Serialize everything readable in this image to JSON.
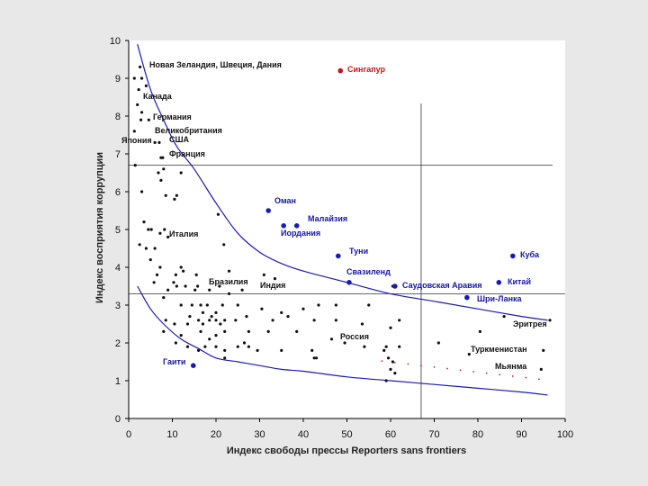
{
  "chart_data": {
    "type": "scatter",
    "title": "",
    "xlabel": "Индекс свободы прессы Reporters sans frontiers",
    "ylabel": "Индекс восприятия коррупции",
    "xlim": [
      0,
      100
    ],
    "ylim": [
      0,
      10
    ],
    "xticks": [
      "0",
      "10",
      "20",
      "30",
      "40",
      "50",
      "60",
      "70",
      "80",
      "90",
      "100"
    ],
    "yticks": [
      "0",
      "1",
      "2",
      "3",
      "4",
      "5",
      "6",
      "7",
      "8",
      "9",
      "10"
    ],
    "grid": false,
    "reference_lines": {
      "vertical_x": 67,
      "horizontal_y1": 6.7,
      "horizontal_y2": 3.3
    },
    "curves": [
      {
        "name": "upper-envelope",
        "x": [
          2,
          5,
          8,
          11,
          15,
          20,
          25,
          30,
          35,
          40,
          50,
          60,
          70,
          80,
          90,
          96
        ],
        "y": [
          9.9,
          8.7,
          7.9,
          7.2,
          6.6,
          5.7,
          4.9,
          4.4,
          4.1,
          3.9,
          3.6,
          3.3,
          3.1,
          2.9,
          2.7,
          2.6
        ]
      },
      {
        "name": "lower-envelope",
        "x": [
          2,
          5,
          8,
          12,
          16,
          20,
          25,
          30,
          35,
          40,
          50,
          60,
          70,
          80,
          90,
          96
        ],
        "y": [
          3.5,
          2.9,
          2.5,
          2.1,
          1.85,
          1.6,
          1.5,
          1.4,
          1.3,
          1.25,
          1.1,
          1.0,
          0.9,
          0.8,
          0.7,
          0.62
        ]
      },
      {
        "name": "red-reference-dots",
        "x": [
          58,
          61,
          64,
          67,
          70,
          73,
          76,
          79,
          82,
          85,
          88,
          91,
          94
        ],
        "y": [
          1.52,
          1.48,
          1.44,
          1.4,
          1.36,
          1.32,
          1.28,
          1.24,
          1.2,
          1.16,
          1.12,
          1.08,
          1.04
        ]
      }
    ],
    "labeled_points": [
      {
        "name": "Новая Зеландия, Швеция, Дания",
        "x": 2.6,
        "y": 9.3,
        "color": "black"
      },
      {
        "name": "Сингапур",
        "x": 48.5,
        "y": 9.2,
        "color": "red"
      },
      {
        "name": "Канада",
        "x": 2.8,
        "y": 8.7,
        "color": "black"
      },
      {
        "name": "Германия",
        "x": 5.2,
        "y": 8.0,
        "color": "black"
      },
      {
        "name": "Великобритания",
        "x": 4.3,
        "y": 7.6,
        "color": "black"
      },
      {
        "name": "США",
        "x": 8.0,
        "y": 7.3,
        "color": "black"
      },
      {
        "name": "Япония",
        "x": 5.8,
        "y": 7.3,
        "color": "black"
      },
      {
        "name": "Франция",
        "x": 7.5,
        "y": 6.9,
        "color": "black"
      },
      {
        "name": "Оман",
        "x": 32.0,
        "y": 5.5,
        "color": "blue"
      },
      {
        "name": "Малайзия",
        "x": 38.5,
        "y": 5.1,
        "color": "blue"
      },
      {
        "name": "Иордания",
        "x": 35.5,
        "y": 5.1,
        "color": "blue"
      },
      {
        "name": "Италия",
        "x": 8.2,
        "y": 4.8,
        "color": "black"
      },
      {
        "name": "Туни",
        "x": 48.0,
        "y": 4.3,
        "color": "blue"
      },
      {
        "name": "Куба",
        "x": 88.0,
        "y": 4.3,
        "color": "blue"
      },
      {
        "name": "Свазиленд",
        "x": 50.5,
        "y": 3.6,
        "color": "blue"
      },
      {
        "name": "Саудовская Аравия",
        "x": 61.0,
        "y": 3.5,
        "color": "blue"
      },
      {
        "name": "Китай",
        "x": 84.8,
        "y": 3.6,
        "color": "blue"
      },
      {
        "name": "Шри-Ланка",
        "x": 77.5,
        "y": 3.2,
        "color": "blue"
      },
      {
        "name": "Бразилия",
        "x": 18.0,
        "y": 3.6,
        "color": "black"
      },
      {
        "name": "Индия",
        "x": 29.0,
        "y": 3.5,
        "color": "black"
      },
      {
        "name": "Эритрея",
        "x": 96.5,
        "y": 2.6,
        "color": "black"
      },
      {
        "name": "Россия",
        "x": 48.2,
        "y": 2.3,
        "color": "black"
      },
      {
        "name": "Туркменистан",
        "x": 95.0,
        "y": 1.8,
        "color": "black"
      },
      {
        "name": "Мьянма",
        "x": 95.0,
        "y": 1.3,
        "color": "black"
      },
      {
        "name": "Гаити",
        "x": 14.8,
        "y": 1.4,
        "color": "blue"
      }
    ],
    "points": [
      [
        2.6,
        9.3
      ],
      [
        1.3,
        9.0
      ],
      [
        2.3,
        8.7
      ],
      [
        3.0,
        9.0
      ],
      [
        4.0,
        8.8
      ],
      [
        2.0,
        8.3
      ],
      [
        3.0,
        8.1
      ],
      [
        4.6,
        7.9
      ],
      [
        2.8,
        7.9
      ],
      [
        1.3,
        7.6
      ],
      [
        6.0,
        7.3
      ],
      [
        7.0,
        7.3
      ],
      [
        7.4,
        6.9
      ],
      [
        7.8,
        6.9
      ],
      [
        8.0,
        6.6
      ],
      [
        6.8,
        6.5
      ],
      [
        1.5,
        6.7
      ],
      [
        3.0,
        6.0
      ],
      [
        7.4,
        6.3
      ],
      [
        12.0,
        6.5
      ],
      [
        8.5,
        5.9
      ],
      [
        10.5,
        5.8
      ],
      [
        11.0,
        5.9
      ],
      [
        20.5,
        5.4
      ],
      [
        3.5,
        5.2
      ],
      [
        4.5,
        5.0
      ],
      [
        5.2,
        5.0
      ],
      [
        8.2,
        5.0
      ],
      [
        9.0,
        4.8
      ],
      [
        7.2,
        4.9
      ],
      [
        2.5,
        4.6
      ],
      [
        4.0,
        4.5
      ],
      [
        6.0,
        4.5
      ],
      [
        21.8,
        4.6
      ],
      [
        5.0,
        4.2
      ],
      [
        12.0,
        4.0
      ],
      [
        7.2,
        4.0
      ],
      [
        6.5,
        3.8
      ],
      [
        12.5,
        3.9
      ],
      [
        10.8,
        3.8
      ],
      [
        23.0,
        3.9
      ],
      [
        31.0,
        3.8
      ],
      [
        33.5,
        3.7
      ],
      [
        15.5,
        3.8
      ],
      [
        5.8,
        3.6
      ],
      [
        9.0,
        3.4
      ],
      [
        10.3,
        3.6
      ],
      [
        11.0,
        3.5
      ],
      [
        13.0,
        3.5
      ],
      [
        15.2,
        3.4
      ],
      [
        15.8,
        3.5
      ],
      [
        18.5,
        3.4
      ],
      [
        20.8,
        3.5
      ],
      [
        23.0,
        3.3
      ],
      [
        26.0,
        3.4
      ],
      [
        8.0,
        3.2
      ],
      [
        12.0,
        3.0
      ],
      [
        14.5,
        3.0
      ],
      [
        16.5,
        3.0
      ],
      [
        17.0,
        2.8
      ],
      [
        18.0,
        3.0
      ],
      [
        19.0,
        2.7
      ],
      [
        20.0,
        2.8
      ],
      [
        21.5,
        3.0
      ],
      [
        25.0,
        3.0
      ],
      [
        27.0,
        2.7
      ],
      [
        30.5,
        2.9
      ],
      [
        35.0,
        2.8
      ],
      [
        40.0,
        2.9
      ],
      [
        43.5,
        3.0
      ],
      [
        47.5,
        3.0
      ],
      [
        55.0,
        3.0
      ],
      [
        8.5,
        2.6
      ],
      [
        10.5,
        2.5
      ],
      [
        13.5,
        2.5
      ],
      [
        14.0,
        2.7
      ],
      [
        16.0,
        2.6
      ],
      [
        17.0,
        2.5
      ],
      [
        18.5,
        2.6
      ],
      [
        20.0,
        2.6
      ],
      [
        21.0,
        2.5
      ],
      [
        22.0,
        2.6
      ],
      [
        24.5,
        2.6
      ],
      [
        33.0,
        2.6
      ],
      [
        36.5,
        2.7
      ],
      [
        42.5,
        2.6
      ],
      [
        47.5,
        2.6
      ],
      [
        53.5,
        2.5
      ],
      [
        62.0,
        2.6
      ],
      [
        8.0,
        2.3
      ],
      [
        12.0,
        2.2
      ],
      [
        16.5,
        2.3
      ],
      [
        18.5,
        2.1
      ],
      [
        20.0,
        2.2
      ],
      [
        22.0,
        2.3
      ],
      [
        27.5,
        2.3
      ],
      [
        32.0,
        2.3
      ],
      [
        38.5,
        2.3
      ],
      [
        46.5,
        2.1
      ],
      [
        49.5,
        2.0
      ],
      [
        60.0,
        2.4
      ],
      [
        10.8,
        2.0
      ],
      [
        13.5,
        1.9
      ],
      [
        16.0,
        1.8
      ],
      [
        17.5,
        1.9
      ],
      [
        20.0,
        1.9
      ],
      [
        22.0,
        1.8
      ],
      [
        25.0,
        1.9
      ],
      [
        27.5,
        1.9
      ],
      [
        29.5,
        1.8
      ],
      [
        35.0,
        1.8
      ],
      [
        42.0,
        1.8
      ],
      [
        54.0,
        1.9
      ],
      [
        58.5,
        1.8
      ],
      [
        59.0,
        1.9
      ],
      [
        62.0,
        1.9
      ],
      [
        71.0,
        2.0
      ],
      [
        78.0,
        1.7
      ],
      [
        80.5,
        2.3
      ],
      [
        59.5,
        1.6
      ],
      [
        60.0,
        1.3
      ],
      [
        60.5,
        1.5
      ],
      [
        42.5,
        1.6
      ],
      [
        43.0,
        1.6
      ],
      [
        22.0,
        1.6
      ],
      [
        26.5,
        2.0
      ],
      [
        59.0,
        1.0
      ],
      [
        61.0,
        1.2
      ],
      [
        94.5,
        1.3
      ],
      [
        95.0,
        1.8
      ],
      [
        96.5,
        2.6
      ],
      [
        86.0,
        2.7
      ],
      [
        32.0,
        5.5
      ],
      [
        48.0,
        4.3
      ],
      [
        35.5,
        5.1
      ],
      [
        38.5,
        5.1
      ],
      [
        60.5,
        3.5
      ],
      [
        50.5,
        3.6
      ],
      [
        77.5,
        3.2
      ],
      [
        84.8,
        3.6
      ],
      [
        88.0,
        4.3
      ],
      [
        14.8,
        1.4
      ],
      [
        48.5,
        9.2
      ]
    ]
  }
}
